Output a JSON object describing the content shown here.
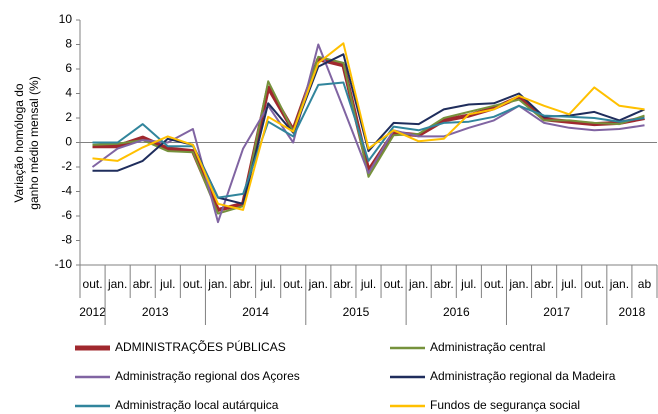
{
  "chart_data": {
    "type": "line",
    "ylabel": [
      "Variação homóloga do",
      "ganho médio mensal (%)"
    ],
    "categories": [
      "out.",
      "jan.",
      "abr.",
      "jul.",
      "out.",
      "jan.",
      "abr.",
      "jul.",
      "out.",
      "jan.",
      "abr.",
      "jul.",
      "out.",
      "jan.",
      "abr.",
      "jul.",
      "out.",
      "jan.",
      "abr.",
      "jul.",
      "out.",
      "jan.",
      "ab"
    ],
    "x_groups": [
      {
        "label": "2012",
        "count": 1
      },
      {
        "label": "2013",
        "count": 4
      },
      {
        "label": "2014",
        "count": 4
      },
      {
        "label": "2015",
        "count": 4
      },
      {
        "label": "2016",
        "count": 4
      },
      {
        "label": "2017",
        "count": 4
      },
      {
        "label": "2018",
        "count": 2
      }
    ],
    "ylim": [
      -10,
      10
    ],
    "yticks": [
      -10,
      -8,
      -6,
      -4,
      -2,
      0,
      2,
      4,
      6,
      8,
      10
    ],
    "grid": false,
    "series": [
      {
        "name": "ADMINISTRAÇÕES PÚBLICAS",
        "color": "#a0282e",
        "values": [
          -0.3,
          -0.3,
          0.4,
          -0.5,
          -0.7,
          -5.5,
          -5,
          4.5,
          1,
          6.8,
          6.3,
          -2.3,
          0.8,
          0.6,
          1.8,
          2.2,
          2.8,
          3.7,
          1.9,
          1.7,
          1.5,
          1.6,
          2.0
        ]
      },
      {
        "name": "Administração central",
        "color": "#76923c",
        "values": [
          -0.2,
          -0.1,
          0.2,
          -0.7,
          -0.8,
          -5.8,
          -5.2,
          5,
          0.9,
          7,
          6.5,
          -2.8,
          0.6,
          0.7,
          2,
          2.5,
          3,
          3.5,
          1.8,
          1.8,
          1.6,
          1.5,
          2.2
        ]
      },
      {
        "name": "Administração regional dos Açores",
        "color": "#8064a2",
        "values": [
          -2,
          -0.5,
          0.2,
          0,
          1.1,
          -6.5,
          -0.5,
          3,
          0,
          8,
          2.8,
          -2.5,
          1,
          0.5,
          0.5,
          1.2,
          1.8,
          3,
          1.6,
          1.2,
          1,
          1.1,
          1.4
        ]
      },
      {
        "name": "Administração regional da Madeira",
        "color": "#1f2d5c",
        "values": [
          -2.3,
          -2.3,
          -1.5,
          0.3,
          -0.2,
          -4.5,
          -5,
          3.2,
          0.8,
          6.2,
          7.2,
          -0.7,
          1.6,
          1.5,
          2.7,
          3.1,
          3.2,
          4,
          2.1,
          2.2,
          2.5,
          1.8,
          2.7
        ]
      },
      {
        "name": "Administração local autárquica",
        "color": "#31859c",
        "values": [
          0,
          0,
          1.5,
          -0.3,
          -0.3,
          -4.5,
          -4.2,
          1.7,
          0.5,
          4.7,
          4.9,
          -1.5,
          1.3,
          1.0,
          1.6,
          1.7,
          2.1,
          3,
          2.2,
          2.1,
          2,
          1.7,
          2.0
        ]
      },
      {
        "name": "Fundos de segurança social",
        "color": "#ffc000",
        "values": [
          -1.3,
          -1.5,
          -0.4,
          0.5,
          -0.2,
          -5,
          -5.5,
          2.1,
          0.9,
          6.5,
          8.1,
          -0.5,
          1,
          0.1,
          0.3,
          2.3,
          2.7,
          3.8,
          3,
          2.3,
          4.5,
          3,
          2.7
        ]
      }
    ]
  }
}
